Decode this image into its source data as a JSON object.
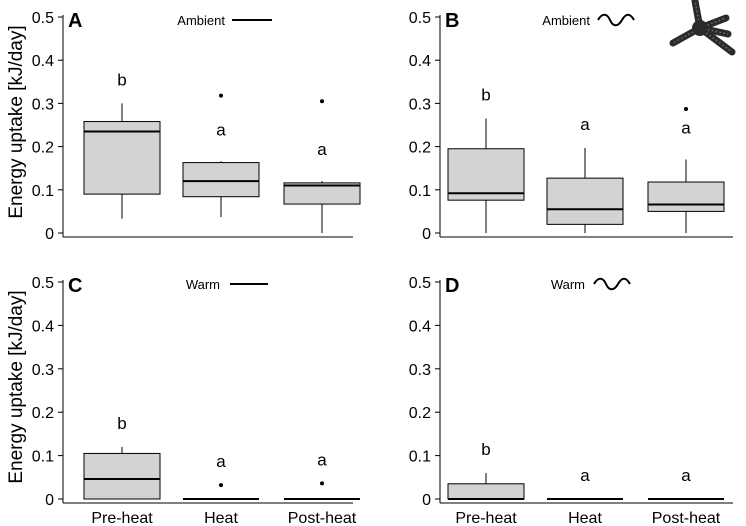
{
  "chart_data": {
    "type": "boxplot",
    "ylabel": "Energy uptake [kJ/day]",
    "ylim": [
      0,
      0.5
    ],
    "yticks": [
      0,
      0.1,
      0.2,
      0.3,
      0.4,
      0.5
    ],
    "ytick_labels": [
      "0",
      "0.1",
      "0.2",
      "0.3",
      "0.4",
      "0.5"
    ],
    "categories": [
      "Pre-heat",
      "Heat",
      "Post-heat"
    ],
    "box_color": "#d3d3d3",
    "panels": [
      {
        "label": "A",
        "legend": "Ambient",
        "legend_symbol": "line",
        "boxes": [
          {
            "category": "Pre-heat",
            "whisker_low": 0.033,
            "q1": 0.09,
            "median": 0.235,
            "q3": 0.258,
            "whisker_high": 0.3,
            "outliers": [],
            "letter": "b"
          },
          {
            "category": "Heat",
            "whisker_low": 0.037,
            "q1": 0.084,
            "median": 0.12,
            "q3": 0.163,
            "whisker_high": 0.166,
            "outliers": [
              0.318
            ],
            "letter": "a"
          },
          {
            "category": "Post-heat",
            "whisker_low": 0.0,
            "q1": 0.067,
            "median": 0.11,
            "q3": 0.116,
            "whisker_high": 0.12,
            "outliers": [
              0.305
            ],
            "letter": "a"
          }
        ]
      },
      {
        "label": "B",
        "legend": "Ambient",
        "legend_symbol": "wave",
        "has_image": true,
        "boxes": [
          {
            "category": "Pre-heat",
            "whisker_low": 0.0,
            "q1": 0.076,
            "median": 0.092,
            "q3": 0.195,
            "whisker_high": 0.265,
            "outliers": [],
            "letter": "b"
          },
          {
            "category": "Heat",
            "whisker_low": 0.0,
            "q1": 0.02,
            "median": 0.055,
            "q3": 0.127,
            "whisker_high": 0.197,
            "outliers": [],
            "letter": "a"
          },
          {
            "category": "Post-heat",
            "whisker_low": 0.0,
            "q1": 0.05,
            "median": 0.066,
            "q3": 0.118,
            "whisker_high": 0.17,
            "outliers": [
              0.287
            ],
            "letter": "a"
          }
        ]
      },
      {
        "label": "C",
        "legend": "Warm",
        "legend_symbol": "line",
        "boxes": [
          {
            "category": "Pre-heat",
            "whisker_low": 0.0,
            "q1": 0.0,
            "median": 0.046,
            "q3": 0.105,
            "whisker_high": 0.12,
            "outliers": [],
            "letter": "b"
          },
          {
            "category": "Heat",
            "whisker_low": 0.0,
            "q1": 0.0,
            "median": 0.0,
            "q3": 0.0,
            "whisker_high": 0.0,
            "outliers": [
              0.032
            ],
            "letter": "a"
          },
          {
            "category": "Post-heat",
            "whisker_low": 0.0,
            "q1": 0.0,
            "median": 0.0,
            "q3": 0.0,
            "whisker_high": 0.0,
            "outliers": [
              0.036
            ],
            "letter": "a"
          }
        ]
      },
      {
        "label": "D",
        "legend": "Warm",
        "legend_symbol": "wave",
        "boxes": [
          {
            "category": "Pre-heat",
            "whisker_low": 0.0,
            "q1": 0.0,
            "median": 0.0,
            "q3": 0.035,
            "whisker_high": 0.06,
            "outliers": [],
            "letter": "b"
          },
          {
            "category": "Heat",
            "whisker_low": 0.0,
            "q1": 0.0,
            "median": 0.0,
            "q3": 0.0,
            "whisker_high": 0.0,
            "outliers": [],
            "letter": "a"
          },
          {
            "category": "Post-heat",
            "whisker_low": 0.0,
            "q1": 0.0,
            "median": 0.0,
            "q3": 0.0,
            "whisker_high": 0.0,
            "outliers": [],
            "letter": "a"
          }
        ]
      }
    ]
  }
}
